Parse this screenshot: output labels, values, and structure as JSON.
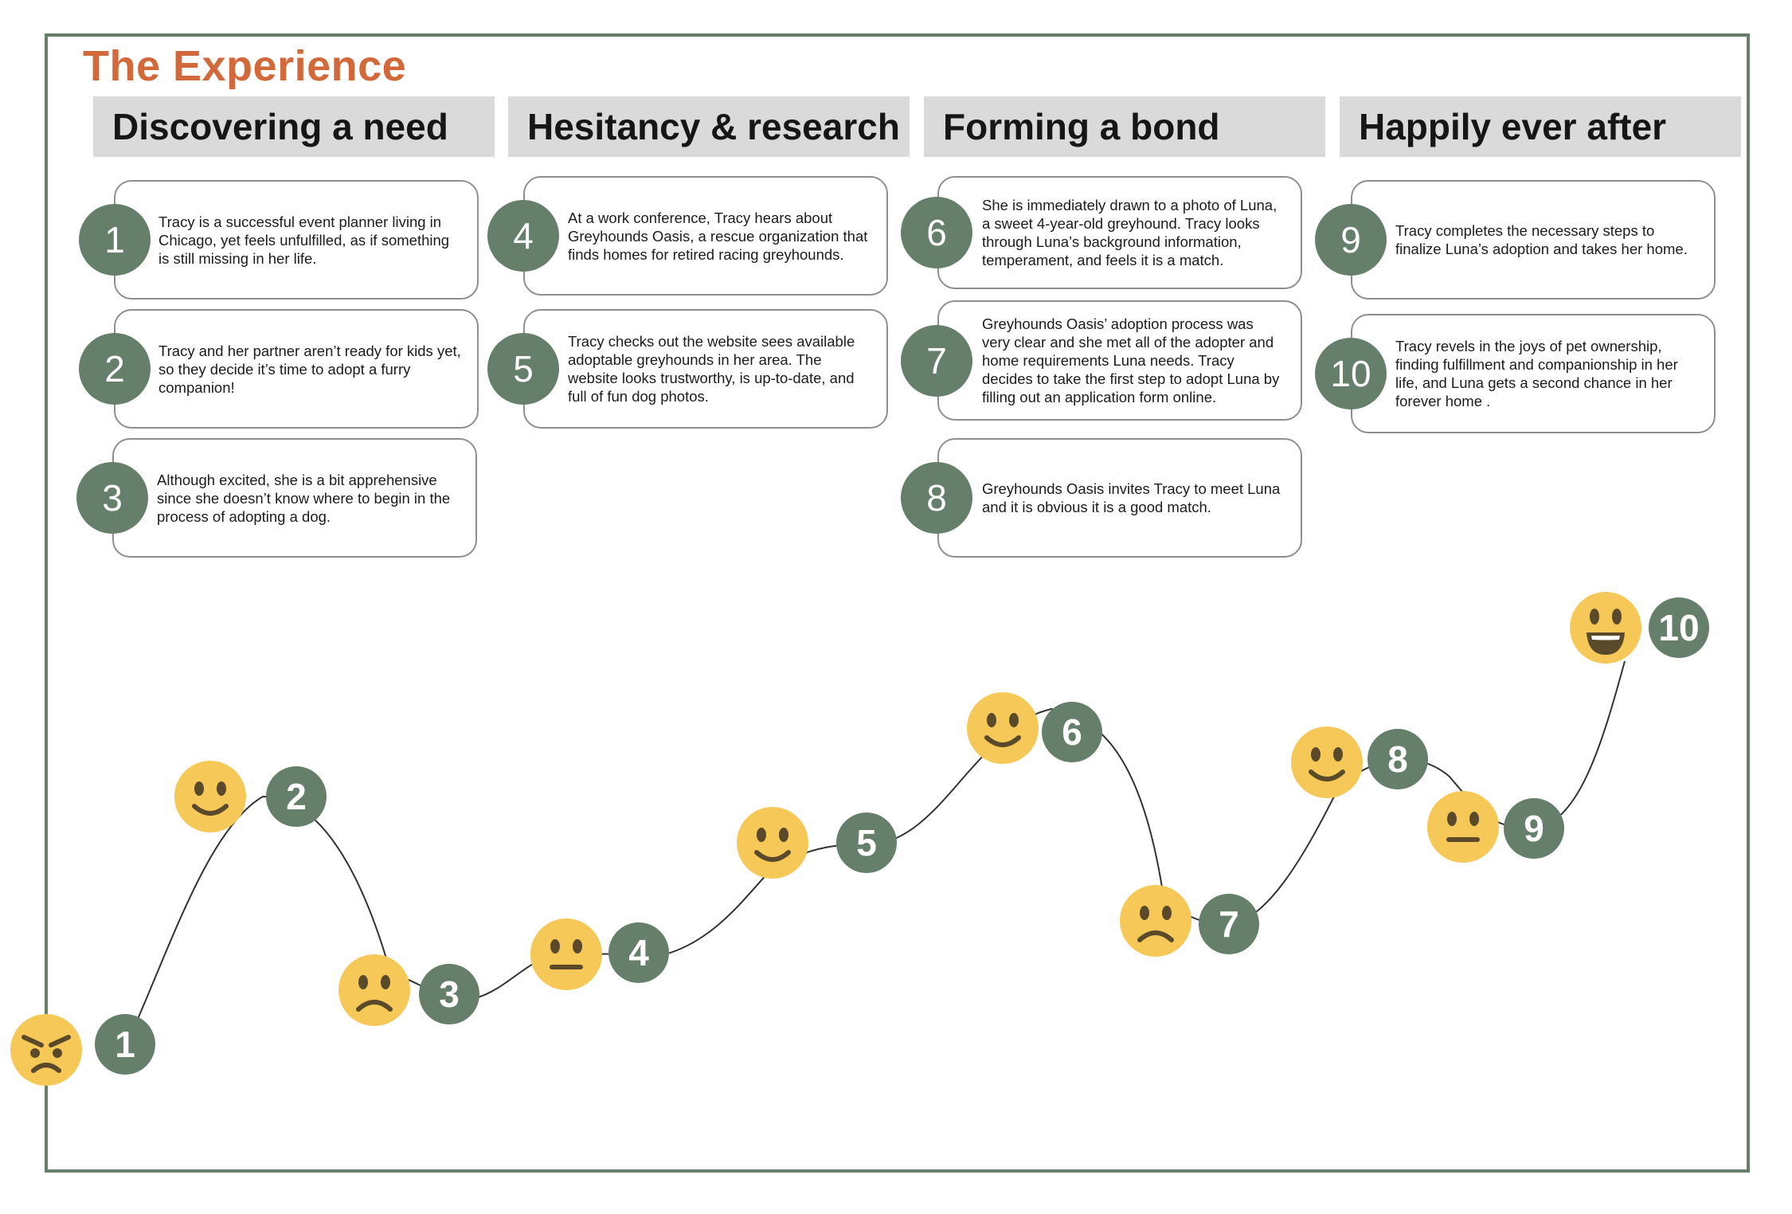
{
  "title": "The Experience",
  "colors": {
    "title": "#d2693a",
    "badge": "#667f6b",
    "frame": "#667f6b",
    "header_bg": "#dadada",
    "emoji_face": "#f5c858",
    "emoji_features": "#5a4a2a",
    "curve": "#333333"
  },
  "phases": [
    {
      "label": "Discovering a need"
    },
    {
      "label": "Hesitancy & research"
    },
    {
      "label": "Forming a bond"
    },
    {
      "label": "Happily ever after"
    }
  ],
  "steps": [
    {
      "number": "1",
      "text": "Tracy is a successful event planner living in Chicago, yet feels unfulfilled, as if something is still missing in her life."
    },
    {
      "number": "2",
      "text": "Tracy and her partner aren’t ready for kids yet, so they decide it’s time to adopt a furry companion!"
    },
    {
      "number": "3",
      "text": "Although excited, she is a bit apprehensive since she doesn’t know where to begin in the process of adopting a dog."
    },
    {
      "number": "4",
      "text": "At a work conference, Tracy hears about Greyhounds Oasis, a rescue organization that finds homes for retired racing greyhounds."
    },
    {
      "number": "5",
      "text": "Tracy checks out the website sees available adoptable greyhounds in her area. The website looks trustworthy, is up-to-date, and full of fun dog photos."
    },
    {
      "number": "6",
      "text": "She is immediately drawn to a photo of Luna, a sweet 4-year-old greyhound. Tracy looks through Luna’s background information, temperament, and feels it is a match."
    },
    {
      "number": "7",
      "text": "Greyhounds Oasis’ adoption process was very clear and she met all of the adopter and home requirements Luna needs. Tracy decides to take the first step to adopt Luna by filling out an application form online."
    },
    {
      "number": "8",
      "text": "Greyhounds Oasis invites Tracy to meet Luna and it is obvious it is a good match."
    },
    {
      "number": "9",
      "text": "Tracy completes the necessary steps to finalize Luna’s adoption and takes her home."
    },
    {
      "number": "10",
      "text": "Tracy revels in the joys of pet ownership, finding fulfillment and companionship in her life, and Luna gets a second chance in her forever home ."
    }
  ],
  "journey": [
    {
      "step": "1",
      "mood": "angry"
    },
    {
      "step": "2",
      "mood": "happy"
    },
    {
      "step": "3",
      "mood": "sad"
    },
    {
      "step": "4",
      "mood": "neutral"
    },
    {
      "step": "5",
      "mood": "happy"
    },
    {
      "step": "6",
      "mood": "happy"
    },
    {
      "step": "7",
      "mood": "sad"
    },
    {
      "step": "8",
      "mood": "happy"
    },
    {
      "step": "9",
      "mood": "neutral"
    },
    {
      "step": "10",
      "mood": "very-happy"
    }
  ]
}
